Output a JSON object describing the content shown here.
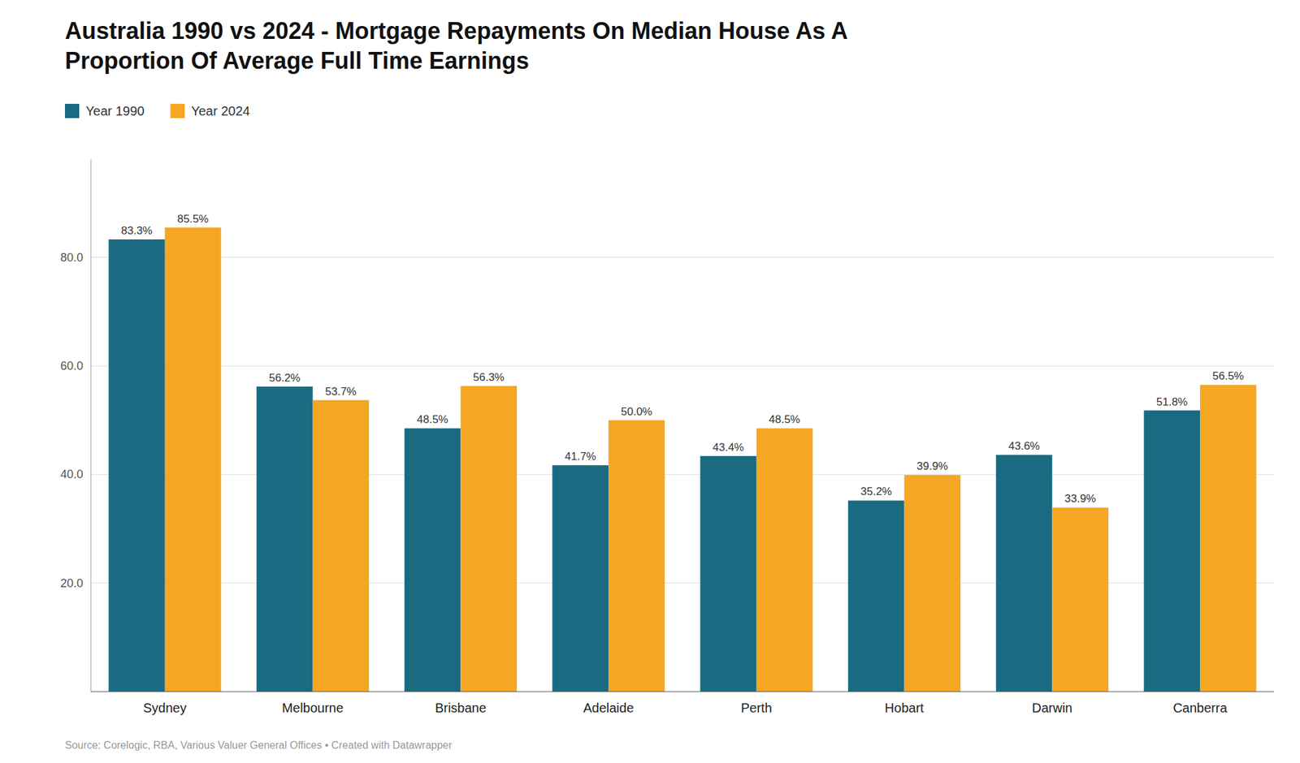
{
  "chart_data": {
    "type": "bar",
    "title": "Australia 1990 vs 2024 - Mortgage Repayments On Median House As A\nProportion Of Average Full Time Earnings",
    "source": "Source: Corelogic, RBA, Various Valuer General Offices • Created with Datawrapper",
    "categories": [
      "Sydney",
      "Melbourne",
      "Brisbane",
      "Adelaide",
      "Perth",
      "Hobart",
      "Darwin",
      "Canberra"
    ],
    "series": [
      {
        "name": "Year 1990",
        "color": "#1a6b82",
        "values": [
          83.3,
          56.2,
          48.5,
          41.7,
          43.4,
          35.2,
          43.6,
          51.8
        ],
        "value_labels": [
          "83.3%",
          "56.2%",
          "48.5%",
          "41.7%",
          "43.4%",
          "35.2%",
          "43.6%",
          "51.8%"
        ]
      },
      {
        "name": "Year 2024",
        "color": "#f5a623",
        "values": [
          85.5,
          53.7,
          56.3,
          50.0,
          48.5,
          39.9,
          33.9,
          56.5
        ],
        "value_labels": [
          "85.5%",
          "53.7%",
          "56.3%",
          "50.0%",
          "48.5%",
          "39.9%",
          "33.9%",
          "56.5%"
        ]
      }
    ],
    "ylim": [
      0,
      98
    ],
    "yticks": [
      {
        "value": 20,
        "label": "20.0"
      },
      {
        "value": 40,
        "label": "40.0"
      },
      {
        "value": 60,
        "label": "60.0"
      },
      {
        "value": 80,
        "label": "80.0"
      }
    ],
    "grid": true,
    "legend": "top-left",
    "data_labels": true
  }
}
